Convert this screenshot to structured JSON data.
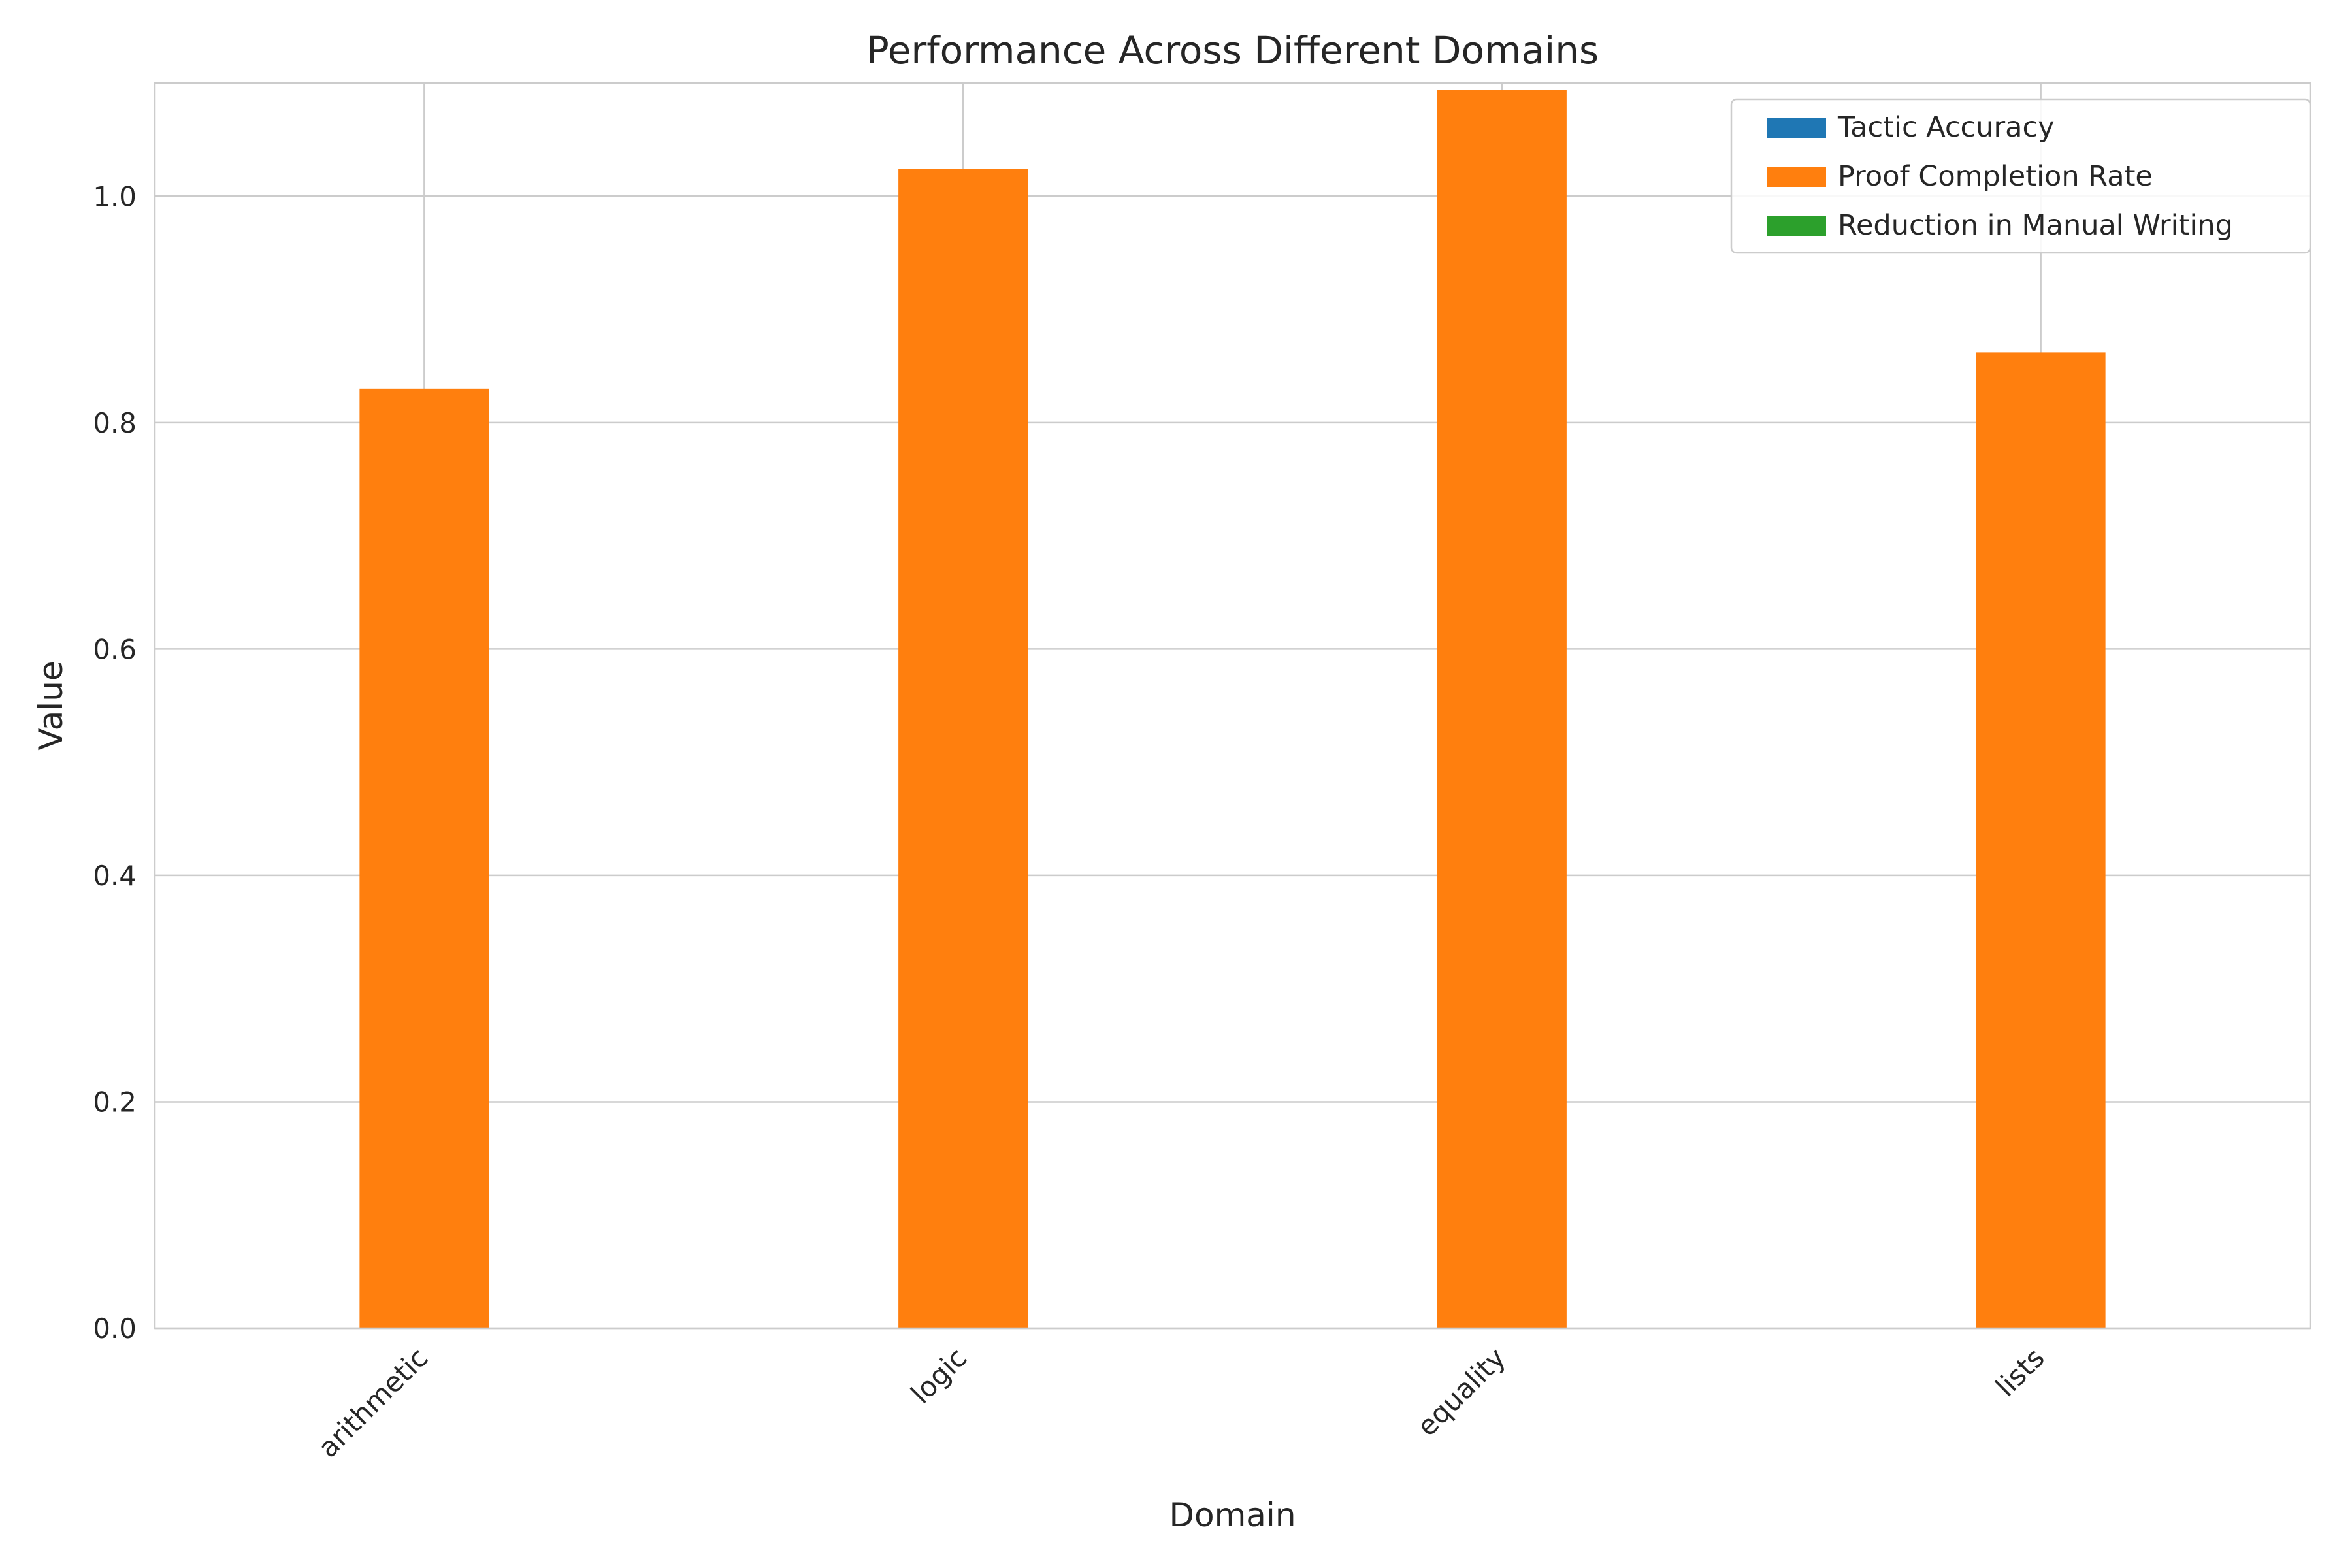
{
  "chart_data": {
    "type": "bar",
    "title": "Performance Across Different Domains",
    "xlabel": "Domain",
    "ylabel": "Value",
    "categories": [
      "arithmetic",
      "logic",
      "equality",
      "lists"
    ],
    "ylim": [
      0,
      1.1
    ],
    "yticks": [
      0.0,
      0.2,
      0.4,
      0.6,
      0.8,
      1.0
    ],
    "ytick_labels": [
      "0.0",
      "0.2",
      "0.4",
      "0.6",
      "0.8",
      "1.0"
    ],
    "grid": true,
    "legend_position": "top-right",
    "series": [
      {
        "name": "Tactic Accuracy",
        "color": "#1f77b4",
        "values": [
          0,
          0,
          0,
          0
        ]
      },
      {
        "name": "Proof Completion Rate",
        "color": "#ff7f0e",
        "values": [
          0.83,
          1.024,
          1.094,
          0.862
        ]
      },
      {
        "name": "Reduction in Manual Writing",
        "color": "#2ca02c",
        "values": [
          0,
          0,
          0,
          0
        ]
      }
    ]
  }
}
